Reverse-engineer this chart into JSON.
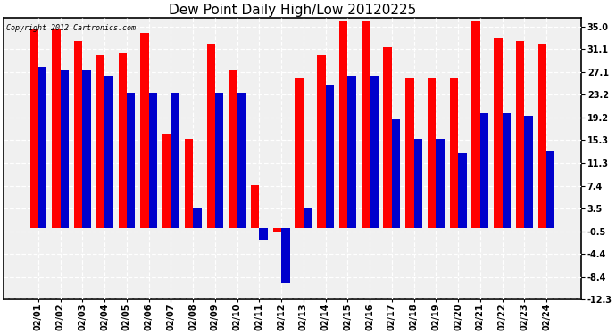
{
  "title": "Dew Point Daily High/Low 20120225",
  "copyright_text": "Copyright 2012 Cartronics.com",
  "dates": [
    "02/01",
    "02/02",
    "02/03",
    "02/04",
    "02/05",
    "02/06",
    "02/07",
    "02/08",
    "02/09",
    "02/10",
    "02/11",
    "02/12",
    "02/13",
    "02/14",
    "02/15",
    "02/16",
    "02/17",
    "02/18",
    "02/19",
    "02/20",
    "02/21",
    "02/22",
    "02/23",
    "02/24"
  ],
  "highs": [
    34.5,
    34.5,
    32.5,
    30.0,
    30.5,
    34.0,
    16.5,
    15.5,
    32.0,
    27.5,
    7.5,
    -0.5,
    26.0,
    30.0,
    36.0,
    36.0,
    31.5,
    26.0,
    26.0,
    26.0,
    36.0,
    33.0,
    32.5,
    32.0
  ],
  "lows": [
    28.0,
    27.5,
    27.5,
    26.5,
    23.5,
    23.5,
    23.5,
    3.5,
    23.5,
    23.5,
    -2.0,
    -9.5,
    3.5,
    25.0,
    26.5,
    26.5,
    19.0,
    15.5,
    15.5,
    13.0,
    20.0,
    20.0,
    19.5,
    13.5
  ],
  "high_color": "#ff0000",
  "low_color": "#0000cc",
  "bg_color": "#ffffff",
  "plot_bg_color": "#f0f0f0",
  "grid_color": "#aaaaaa",
  "yticks": [
    35.0,
    31.1,
    27.1,
    23.2,
    19.2,
    15.3,
    11.3,
    7.4,
    3.5,
    -0.5,
    -4.4,
    -8.4,
    -12.3
  ],
  "ylim": [
    -12.3,
    36.5
  ],
  "title_fontsize": 11,
  "tick_fontsize": 7,
  "bar_width": 0.38,
  "figwidth": 6.9,
  "figheight": 3.75
}
